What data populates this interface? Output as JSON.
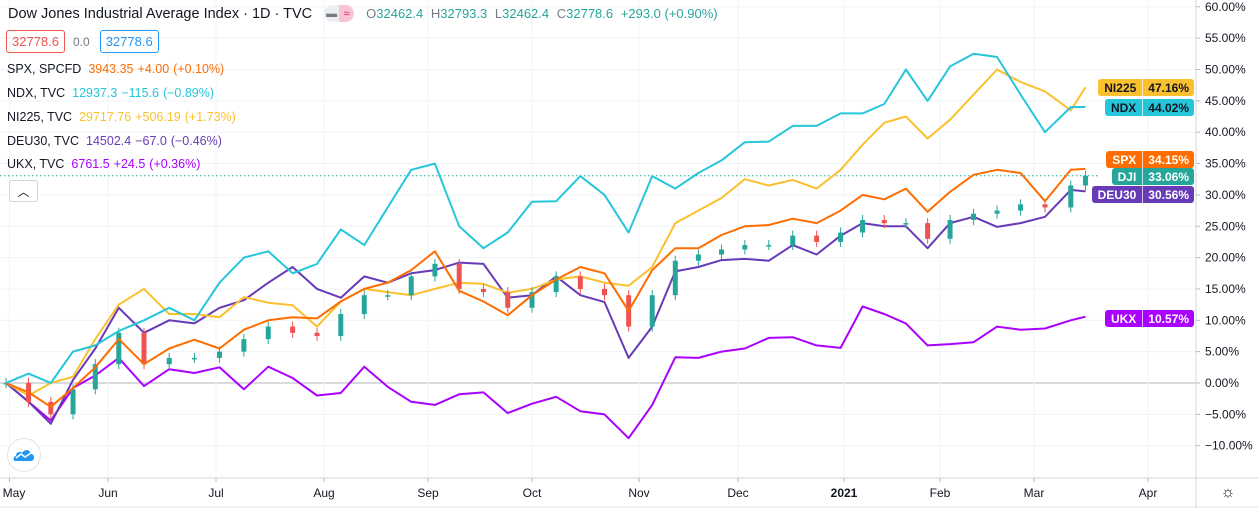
{
  "header": {
    "title": "Dow Jones Industrial Average Index · 1D · TVC",
    "ohlc": [
      {
        "k": "O",
        "v": "32462.4"
      },
      {
        "k": "H",
        "v": "32793.3"
      },
      {
        "k": "L",
        "v": "32462.4"
      },
      {
        "k": "C",
        "v": "32778.6"
      }
    ],
    "change": "+293.0 (+0.90%)",
    "toggle_icons": [
      "minus-icon",
      "wave-icon"
    ]
  },
  "trade": {
    "sell": "32778.6",
    "spread": "0.0",
    "buy": "32778.6"
  },
  "legend": [
    {
      "name": "SPX, SPCFD",
      "price": "3943.35",
      "chg": "+4.00",
      "pct": "(+0.10%)",
      "color": "#ff6d00"
    },
    {
      "name": "NDX, TVC",
      "price": "12937.3",
      "chg": "−115.6",
      "pct": "(−0.89%)",
      "color": "#26c6da"
    },
    {
      "name": "NI225, TVC",
      "price": "29717.76",
      "chg": "+506.19",
      "pct": "(+1.73%)",
      "color": "#fbc02d"
    },
    {
      "name": "DEU30, TVC",
      "price": "14502.4",
      "chg": "−67.0",
      "pct": "(−0.46%)",
      "color": "#673ab7"
    },
    {
      "name": "UKX, TVC",
      "price": "6761.5",
      "chg": "+24.5",
      "pct": "(+0.36%)",
      "color": "#aa00ff"
    }
  ],
  "collapse_icon": "chevron-up-icon",
  "tags": [
    {
      "name": "NI225",
      "value": "47.16%",
      "bg": "#fbc02d",
      "fg": "#131722"
    },
    {
      "name": "NDX",
      "value": "44.02%",
      "bg": "#26c6da",
      "fg": "#131722"
    },
    {
      "name": "SPX",
      "value": "34.15%",
      "bg": "#ff6d00",
      "fg": "#ffffff"
    },
    {
      "name": "DJI",
      "value": "33.06%",
      "bg": "#26a69a",
      "fg": "#ffffff"
    },
    {
      "name": "DEU30",
      "value": "30.56%",
      "bg": "#673ab7",
      "fg": "#ffffff"
    },
    {
      "name": "UKX",
      "value": "10.57%",
      "bg": "#aa00ff",
      "fg": "#ffffff"
    }
  ],
  "chart_data": {
    "type": "line",
    "title": "Dow Jones Industrial Average Index · 1D · TVC",
    "xlabel": "",
    "ylabel": "",
    "y_scale": "percent",
    "ylim": [
      -10,
      60
    ],
    "y_ticks": [
      "60.00%",
      "55.00%",
      "50.00%",
      "45.00%",
      "40.00%",
      "35.00%",
      "30.00%",
      "25.00%",
      "20.00%",
      "15.00%",
      "10.00%",
      "5.00%",
      "0.00%",
      "−5.00%",
      "−10.00%"
    ],
    "y_tick_values": [
      60,
      55,
      50,
      45,
      40,
      35,
      30,
      25,
      20,
      15,
      10,
      5,
      0,
      -5,
      -10
    ],
    "x_ticks": [
      {
        "label": "May",
        "date": "2020-05-01"
      },
      {
        "label": "Jun",
        "date": "2020-06-01"
      },
      {
        "label": "Jul",
        "date": "2020-07-01"
      },
      {
        "label": "Aug",
        "date": "2020-08-01"
      },
      {
        "label": "Sep",
        "date": "2020-09-01"
      },
      {
        "label": "Oct",
        "date": "2020-10-01"
      },
      {
        "label": "Nov",
        "date": "2020-11-01"
      },
      {
        "label": "Dec",
        "date": "2020-12-01"
      },
      {
        "label": "2021",
        "date": "2021-01-01"
      },
      {
        "label": "Feb",
        "date": "2021-02-01"
      },
      {
        "label": "Mar",
        "date": "2021-03-01"
      },
      {
        "label": "Apr",
        "date": "2021-04-01"
      }
    ],
    "grid": true,
    "x": [
      "2020-04-30",
      "2020-05-07",
      "2020-05-14",
      "2020-05-21",
      "2020-05-28",
      "2020-06-04",
      "2020-06-11",
      "2020-06-18",
      "2020-06-25",
      "2020-07-02",
      "2020-07-09",
      "2020-07-16",
      "2020-07-23",
      "2020-07-30",
      "2020-08-06",
      "2020-08-13",
      "2020-08-20",
      "2020-08-27",
      "2020-09-03",
      "2020-09-10",
      "2020-09-17",
      "2020-09-24",
      "2020-10-01",
      "2020-10-08",
      "2020-10-15",
      "2020-10-22",
      "2020-10-29",
      "2020-11-05",
      "2020-11-12",
      "2020-11-19",
      "2020-11-26",
      "2020-12-03",
      "2020-12-10",
      "2020-12-17",
      "2020-12-24",
      "2020-12-31",
      "2021-01-07",
      "2021-01-14",
      "2021-01-21",
      "2021-01-28",
      "2021-02-04",
      "2021-02-11",
      "2021-02-18",
      "2021-02-25",
      "2021-03-04",
      "2021-03-11",
      "2021-03-15"
    ],
    "series": [
      {
        "name": "NDX",
        "color": "#26c6da",
        "style": "line",
        "values": [
          0,
          1.5,
          0,
          5,
          6,
          8.3,
          10,
          12,
          10,
          16,
          20,
          21,
          17.5,
          19,
          24.5,
          22,
          28,
          34,
          35,
          25,
          21.5,
          24,
          28.9,
          29,
          33,
          30,
          24,
          33,
          31,
          33.5,
          35.5,
          38.4,
          38.5,
          41,
          41,
          43,
          43,
          44.5,
          50,
          45,
          50.5,
          52.5,
          52,
          46,
          40,
          44,
          44.02
        ]
      },
      {
        "name": "NI225",
        "color": "#fbc02d",
        "style": "line",
        "values": [
          0,
          -2,
          0,
          1,
          7,
          12.5,
          15,
          11,
          11,
          10.5,
          13.7,
          12.8,
          12.4,
          9,
          13,
          15,
          14.5,
          14,
          15,
          16,
          15.8,
          14.4,
          15,
          16.5,
          17,
          16,
          15.5,
          18.5,
          25.5,
          27.5,
          29.5,
          32.5,
          31.5,
          32.4,
          31,
          34,
          38,
          41.5,
          42.5,
          39,
          42,
          46,
          50,
          48,
          46.5,
          43.5,
          47.16
        ]
      },
      {
        "name": "SPX",
        "color": "#ff6d00",
        "style": "line",
        "values": [
          0,
          -1.5,
          -3.8,
          -0.8,
          2.5,
          7,
          3,
          5.5,
          6.9,
          5.5,
          8.5,
          10,
          10.5,
          10.3,
          13,
          15,
          16,
          18,
          21,
          14.7,
          13,
          10.8,
          14,
          16.5,
          18.5,
          17.5,
          11.5,
          18,
          21.5,
          21.5,
          23.6,
          25,
          25.2,
          26.2,
          25.5,
          27.5,
          30,
          29.3,
          31,
          27.3,
          30.5,
          33.2,
          34,
          33.5,
          29,
          34,
          34.15
        ]
      },
      {
        "name": "DJI",
        "color": "#26a69a",
        "down_color": "#ef5350",
        "style": "candles",
        "values": [
          0,
          -3,
          -5,
          -1,
          3,
          8,
          3,
          4,
          4,
          5,
          7,
          9,
          8,
          7.5,
          11,
          14,
          14,
          17,
          19,
          15,
          14.5,
          12,
          14.5,
          17,
          15,
          14,
          9,
          14,
          19.5,
          20.5,
          21.3,
          22,
          22,
          23.5,
          22.5,
          24,
          26,
          25.5,
          25.5,
          23,
          26,
          27,
          27.5,
          28.5,
          28,
          31.5,
          33.06
        ]
      },
      {
        "name": "DEU30",
        "color": "#673ab7",
        "style": "line",
        "values": [
          0,
          -3,
          -6.5,
          0.5,
          5.5,
          12,
          8,
          10,
          9.5,
          12,
          13.2,
          16,
          18.5,
          15,
          13.6,
          17,
          16,
          17.5,
          18,
          19.2,
          19,
          13.6,
          14,
          17,
          14,
          12.9,
          4,
          9,
          17.8,
          18.5,
          19.6,
          19.8,
          19.5,
          22,
          20.5,
          23.5,
          25.5,
          25,
          25,
          21.5,
          25.5,
          26.5,
          24.9,
          25.5,
          26.5,
          30.8,
          30.56
        ]
      },
      {
        "name": "UKX",
        "color": "#aa00ff",
        "style": "line",
        "values": [
          0,
          -3,
          -6,
          -0.8,
          1.2,
          4,
          -0.5,
          2.2,
          1.6,
          2.5,
          -1,
          2.6,
          0.8,
          -2,
          -1.6,
          2.6,
          -0.6,
          -3,
          -3.5,
          -1.8,
          -1.5,
          -4.8,
          -3.3,
          -2.2,
          -4.5,
          -5,
          -8.8,
          -3.5,
          4.1,
          4,
          5,
          5.5,
          7.2,
          7.3,
          6,
          5.6,
          12.2,
          11,
          9.5,
          6,
          6.2,
          6.5,
          9,
          8.5,
          8.7,
          10,
          10.57
        ]
      }
    ],
    "last_value_line": {
      "series": "DJI",
      "value": 33.06,
      "color": "#26a69a"
    }
  }
}
